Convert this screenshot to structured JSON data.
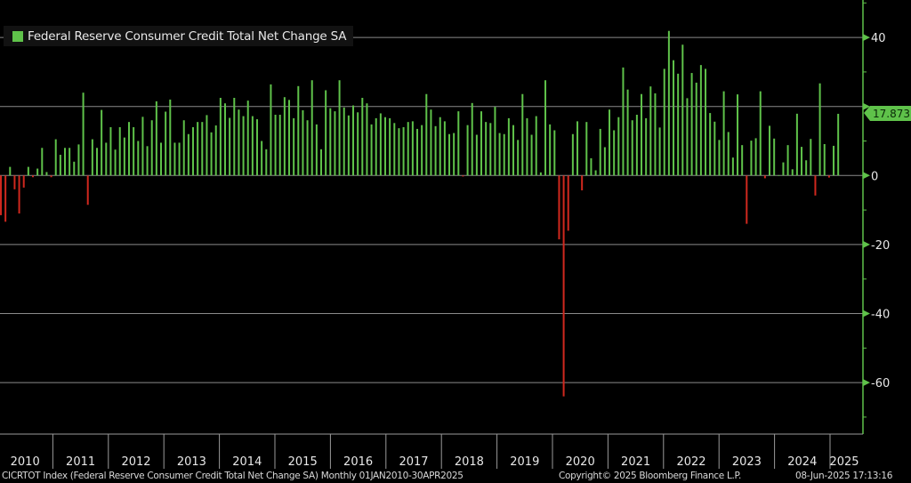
{
  "chart_data": {
    "type": "bar",
    "title": "Federal Reserve Consumer Credit Total Net Change SA",
    "legend": [
      {
        "label": "Federal Reserve Consumer Credit Total Net Change SA",
        "color": "#5fc24a"
      }
    ],
    "legend_placement": "top-left",
    "frequency": "Monthly",
    "x_start": "2010-01",
    "x_end": "2025-04",
    "x_tick_labels": [
      "2010",
      "2011",
      "2012",
      "2013",
      "2014",
      "2015",
      "2016",
      "2017",
      "2018",
      "2019",
      "2020",
      "2021",
      "2022",
      "2023",
      "2024",
      "2025"
    ],
    "y_ticks": [
      40,
      20,
      0,
      -20,
      -40,
      -60
    ],
    "y_tick_labels": [
      "40",
      "20",
      "0",
      "-20",
      "-40",
      "-60"
    ],
    "ylim": [
      -75,
      51
    ],
    "grid": true,
    "last_value_label": "17.873",
    "positive_color": "#5fc24a",
    "negative_color": "#d0281e",
    "values": [
      -11.5,
      -13.4,
      2.5,
      -4,
      -11,
      -3.5,
      2.5,
      -0.5,
      2,
      8,
      1,
      -0.5,
      10.5,
      6,
      8,
      8,
      4,
      9,
      24,
      -8.5,
      10.5,
      8,
      19,
      9.5,
      14,
      7.5,
      14,
      11,
      15.5,
      14,
      10,
      17,
      8.5,
      16,
      21.5,
      9.5,
      18.5,
      22,
      9.5,
      9.5,
      16,
      12,
      14,
      15.5,
      15.5,
      17.5,
      12.5,
      14.5,
      22.5,
      20.9,
      16.7,
      22.5,
      19.1,
      17.2,
      21.7,
      17.2,
      16.3,
      10,
      7.6,
      26.4,
      17.6,
      17.6,
      22.7,
      21.9,
      16.6,
      25.9,
      18.9,
      16,
      27.6,
      14.8,
      7.6,
      24.7,
      19.5,
      18.6,
      27.6,
      19.7,
      17.4,
      20.3,
      18.3,
      22.5,
      20.9,
      14.8,
      16.6,
      18,
      16.9,
      16.6,
      15.2,
      13.7,
      14,
      15.5,
      15.7,
      13.5,
      14.6,
      23.6,
      19.1,
      14.3,
      16.9,
      15.7,
      12,
      12.3,
      18.6,
      -0.3,
      14.6,
      21,
      11.8,
      18.6,
      15.5,
      15.2,
      19.9,
      12.3,
      12,
      16.6,
      14.6,
      10.3,
      23.6,
      16.6,
      11.8,
      17.2,
      0.9,
      27.6,
      14.8,
      13.1,
      -18.5,
      -64,
      -16,
      12,
      15.7,
      -4.3,
      15.5,
      5,
      1.5,
      13.5,
      8.2,
      19.1,
      13.1,
      16.9,
      31.3,
      24.9,
      16,
      17.6,
      23.6,
      16.6,
      25.8,
      23.8,
      13.9,
      30.9,
      41.9,
      33.4,
      29.5,
      37.9,
      22.4,
      29.7,
      26.9,
      32,
      30.9,
      18.1,
      15.6,
      10.3,
      24.4,
      12.6,
      5.2,
      23.5,
      8.8,
      -14,
      10.1,
      10.8,
      24.4,
      -0.8,
      14.4,
      10.7,
      0.1,
      3.8,
      8.8,
      1.8,
      17.9,
      8.3,
      4.4,
      10.6,
      -5.8,
      26.7,
      9.1,
      -0.6,
      8.6,
      17.873
    ]
  },
  "footer": {
    "ticker": "CICRTOT Index (Federal Reserve Consumer Credit Total Net Change SA)  Monthly 01JAN2010-30APR2025",
    "copyright": "Copyright© 2025 Bloomberg Finance L.P.",
    "timestamp": "08-Jun-2025 17:13:16"
  }
}
